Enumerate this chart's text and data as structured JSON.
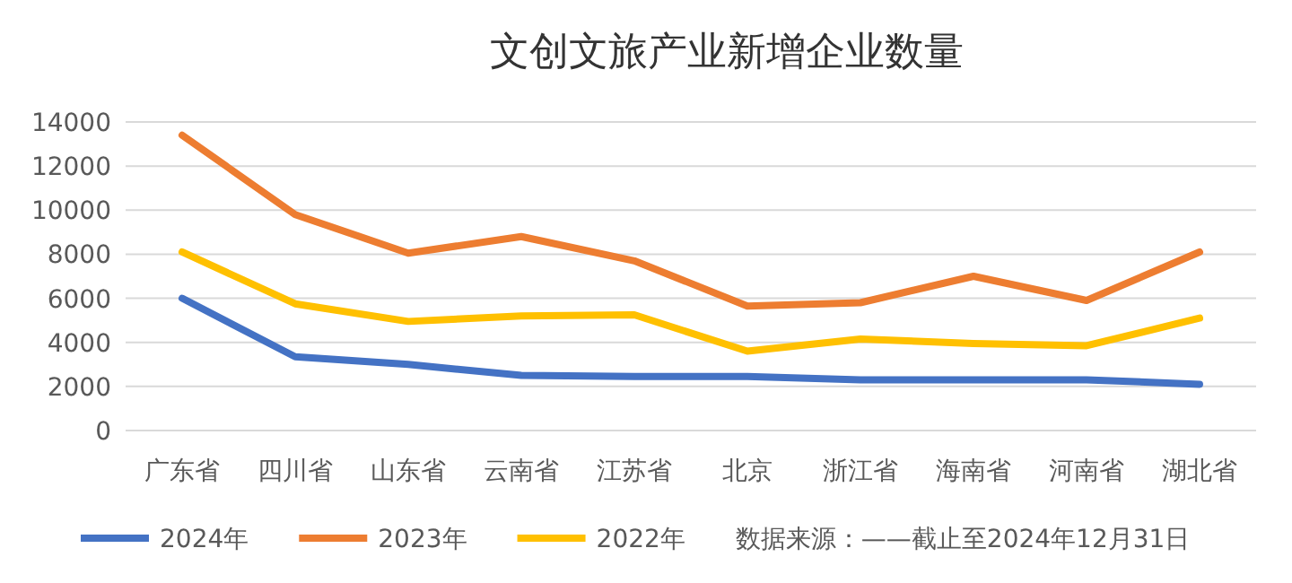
{
  "chart_data": {
    "type": "line",
    "title": "文创文旅产业新增企业数量",
    "categories": [
      "广东省",
      "四川省",
      "山东省",
      "云南省",
      "江苏省",
      "北京",
      "浙江省",
      "海南省",
      "河南省",
      "湖北省"
    ],
    "series": [
      {
        "name": "2024年",
        "color": "#4472c4",
        "values": [
          6000,
          3350,
          3000,
          2500,
          2450,
          2450,
          2300,
          2300,
          2300,
          2100
        ]
      },
      {
        "name": "2023年",
        "color": "#ed7d31",
        "values": [
          13400,
          9800,
          8050,
          8800,
          7700,
          5650,
          5800,
          7000,
          5900,
          8100
        ]
      },
      {
        "name": "2022年",
        "color": "#ffc000",
        "values": [
          8100,
          5750,
          4950,
          5200,
          5250,
          3600,
          4150,
          3950,
          3850,
          5100
        ]
      }
    ],
    "ylim": [
      0,
      14000
    ],
    "yticks": [
      0,
      2000,
      4000,
      6000,
      8000,
      10000,
      12000,
      14000
    ],
    "grid": "y",
    "legend": "bottom",
    "marker": "none",
    "line_style": "solid",
    "annotations": [
      "数据来源：——截止至2024年12月31日"
    ]
  }
}
